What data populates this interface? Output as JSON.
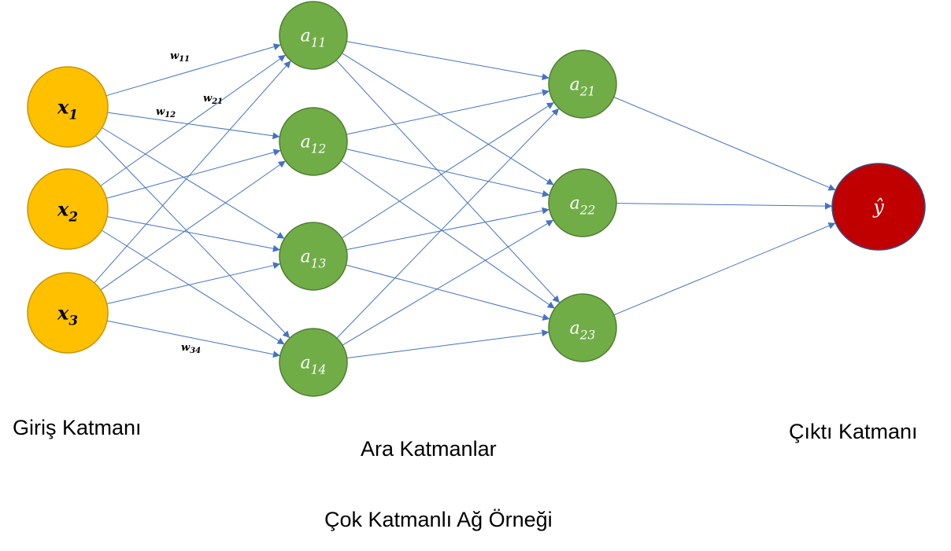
{
  "colors": {
    "input": "#FFC000",
    "input_stroke": "#C79500",
    "hidden": "#70AD47",
    "hidden_stroke": "#507E32",
    "output": "#C00000",
    "output_stroke": "#2F4F8F",
    "edge": "#4472C4"
  },
  "layers": {
    "input": [
      {
        "base": "x",
        "sub": "1"
      },
      {
        "base": "x",
        "sub": "2"
      },
      {
        "base": "x",
        "sub": "3"
      }
    ],
    "hidden1": [
      {
        "base": "a",
        "sub": "11"
      },
      {
        "base": "a",
        "sub": "12"
      },
      {
        "base": "a",
        "sub": "13"
      },
      {
        "base": "a",
        "sub": "14"
      }
    ],
    "hidden2": [
      {
        "base": "a",
        "sub": "21"
      },
      {
        "base": "a",
        "sub": "22"
      },
      {
        "base": "a",
        "sub": "23"
      }
    ],
    "output": [
      {
        "base": "ŷ",
        "sub": ""
      }
    ]
  },
  "weights": [
    {
      "base": "w",
      "sub": "11"
    },
    {
      "base": "w",
      "sub": "21"
    },
    {
      "base": "w",
      "sub": "12"
    },
    {
      "base": "w",
      "sub": "34"
    }
  ],
  "captions": {
    "input_layer": "Giriş Katmanı",
    "hidden_layers": "Ara Katmanlar",
    "output_layer": "Çıktı Katmanı",
    "title": "Çok Katmanlı Ağ Örneği"
  }
}
